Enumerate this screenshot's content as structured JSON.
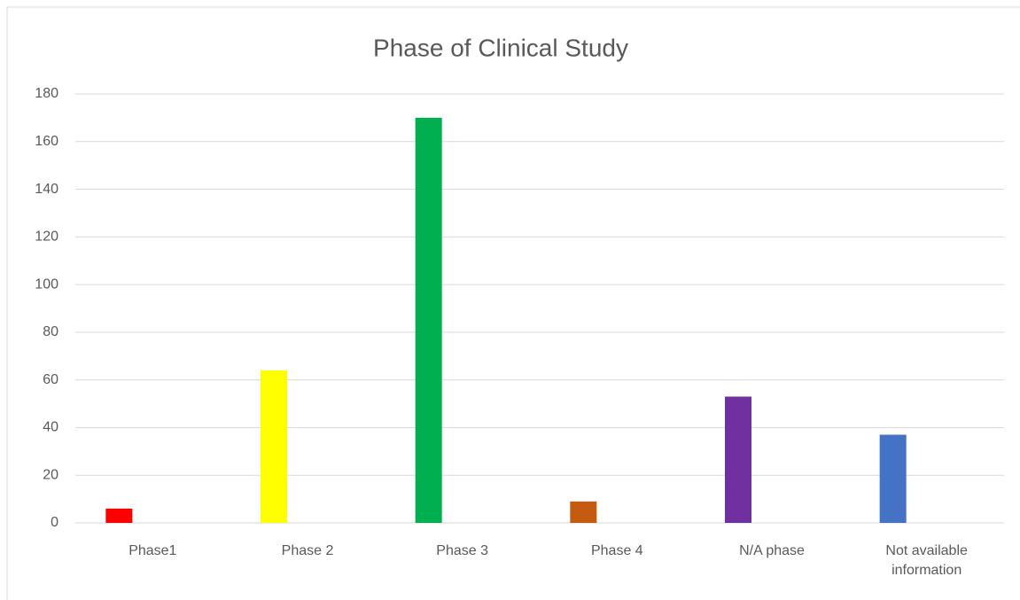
{
  "chart_data": {
    "type": "bar",
    "title": "Phase of Clinical Study",
    "categories": [
      "Phase1",
      "Phase 2",
      "Phase 3",
      "Phase 4",
      "N/A phase",
      "Not available information"
    ],
    "values": [
      6,
      64,
      170,
      9,
      53,
      37
    ],
    "colors": [
      "#ff0000",
      "#ffff00",
      "#00b050",
      "#c55a11",
      "#7030a0",
      "#4472c4"
    ],
    "ylim": [
      0,
      180
    ],
    "yticks": [
      0,
      20,
      40,
      60,
      80,
      100,
      120,
      140,
      160,
      180
    ],
    "grid": true
  }
}
